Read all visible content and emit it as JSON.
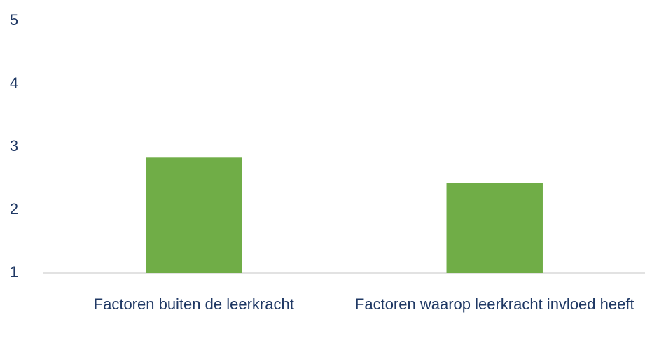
{
  "chart_data": {
    "type": "bar",
    "categories": [
      "Factoren buiten de leerkracht",
      "Factoren waarop leerkracht invloed heeft"
    ],
    "values": [
      2.83,
      2.43
    ],
    "color": "#70ad47",
    "ylim": [
      1,
      5
    ],
    "yticks": [
      1,
      2,
      3,
      4,
      5
    ],
    "grid": false
  }
}
